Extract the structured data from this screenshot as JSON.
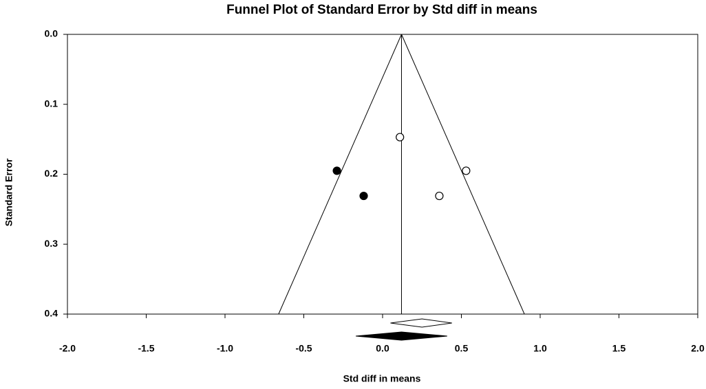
{
  "chart_data": {
    "type": "funnel",
    "title": "Funnel Plot of Standard Error by Std diff in means",
    "x_label": "Std diff in means",
    "y_label": "Standard Error",
    "xlim": [
      -2.0,
      2.0
    ],
    "ylim": [
      0.0,
      0.4
    ],
    "y_inverted": true,
    "xticks": [
      {
        "value": -2.0,
        "label": "-2.0"
      },
      -1.5,
      {
        "value": -1.0,
        "label": "-1.0"
      },
      -0.5,
      {
        "value": 0.0,
        "label": "0.0"
      },
      0.5,
      {
        "value": 1.0,
        "label": "1.0"
      },
      1.5,
      {
        "value": 2.0,
        "label": "2.0"
      }
    ],
    "yticks": [
      {
        "value": 0.0,
        "label": "0.0"
      },
      0.1,
      0.2,
      0.3,
      0.4
    ],
    "funnel": {
      "center": 0.12,
      "lower_at_max": -0.66,
      "upper_at_max": 0.9
    },
    "series": [
      {
        "filled": false,
        "color": "#000000",
        "x": [
          0.11,
          0.53,
          0.36
        ],
        "values": [
          0.147,
          0.195,
          0.231
        ]
      },
      {
        "filled": true,
        "color": "#000000",
        "x": [
          -0.29,
          -0.12
        ],
        "values": [
          0.195,
          0.231
        ]
      }
    ],
    "estimates": [
      {
        "filled": false,
        "value": 0.25,
        "lower": 0.05,
        "upper": 0.44
      },
      {
        "filled": true,
        "value": 0.12,
        "lower": -0.17,
        "upper": 0.41
      }
    ]
  }
}
